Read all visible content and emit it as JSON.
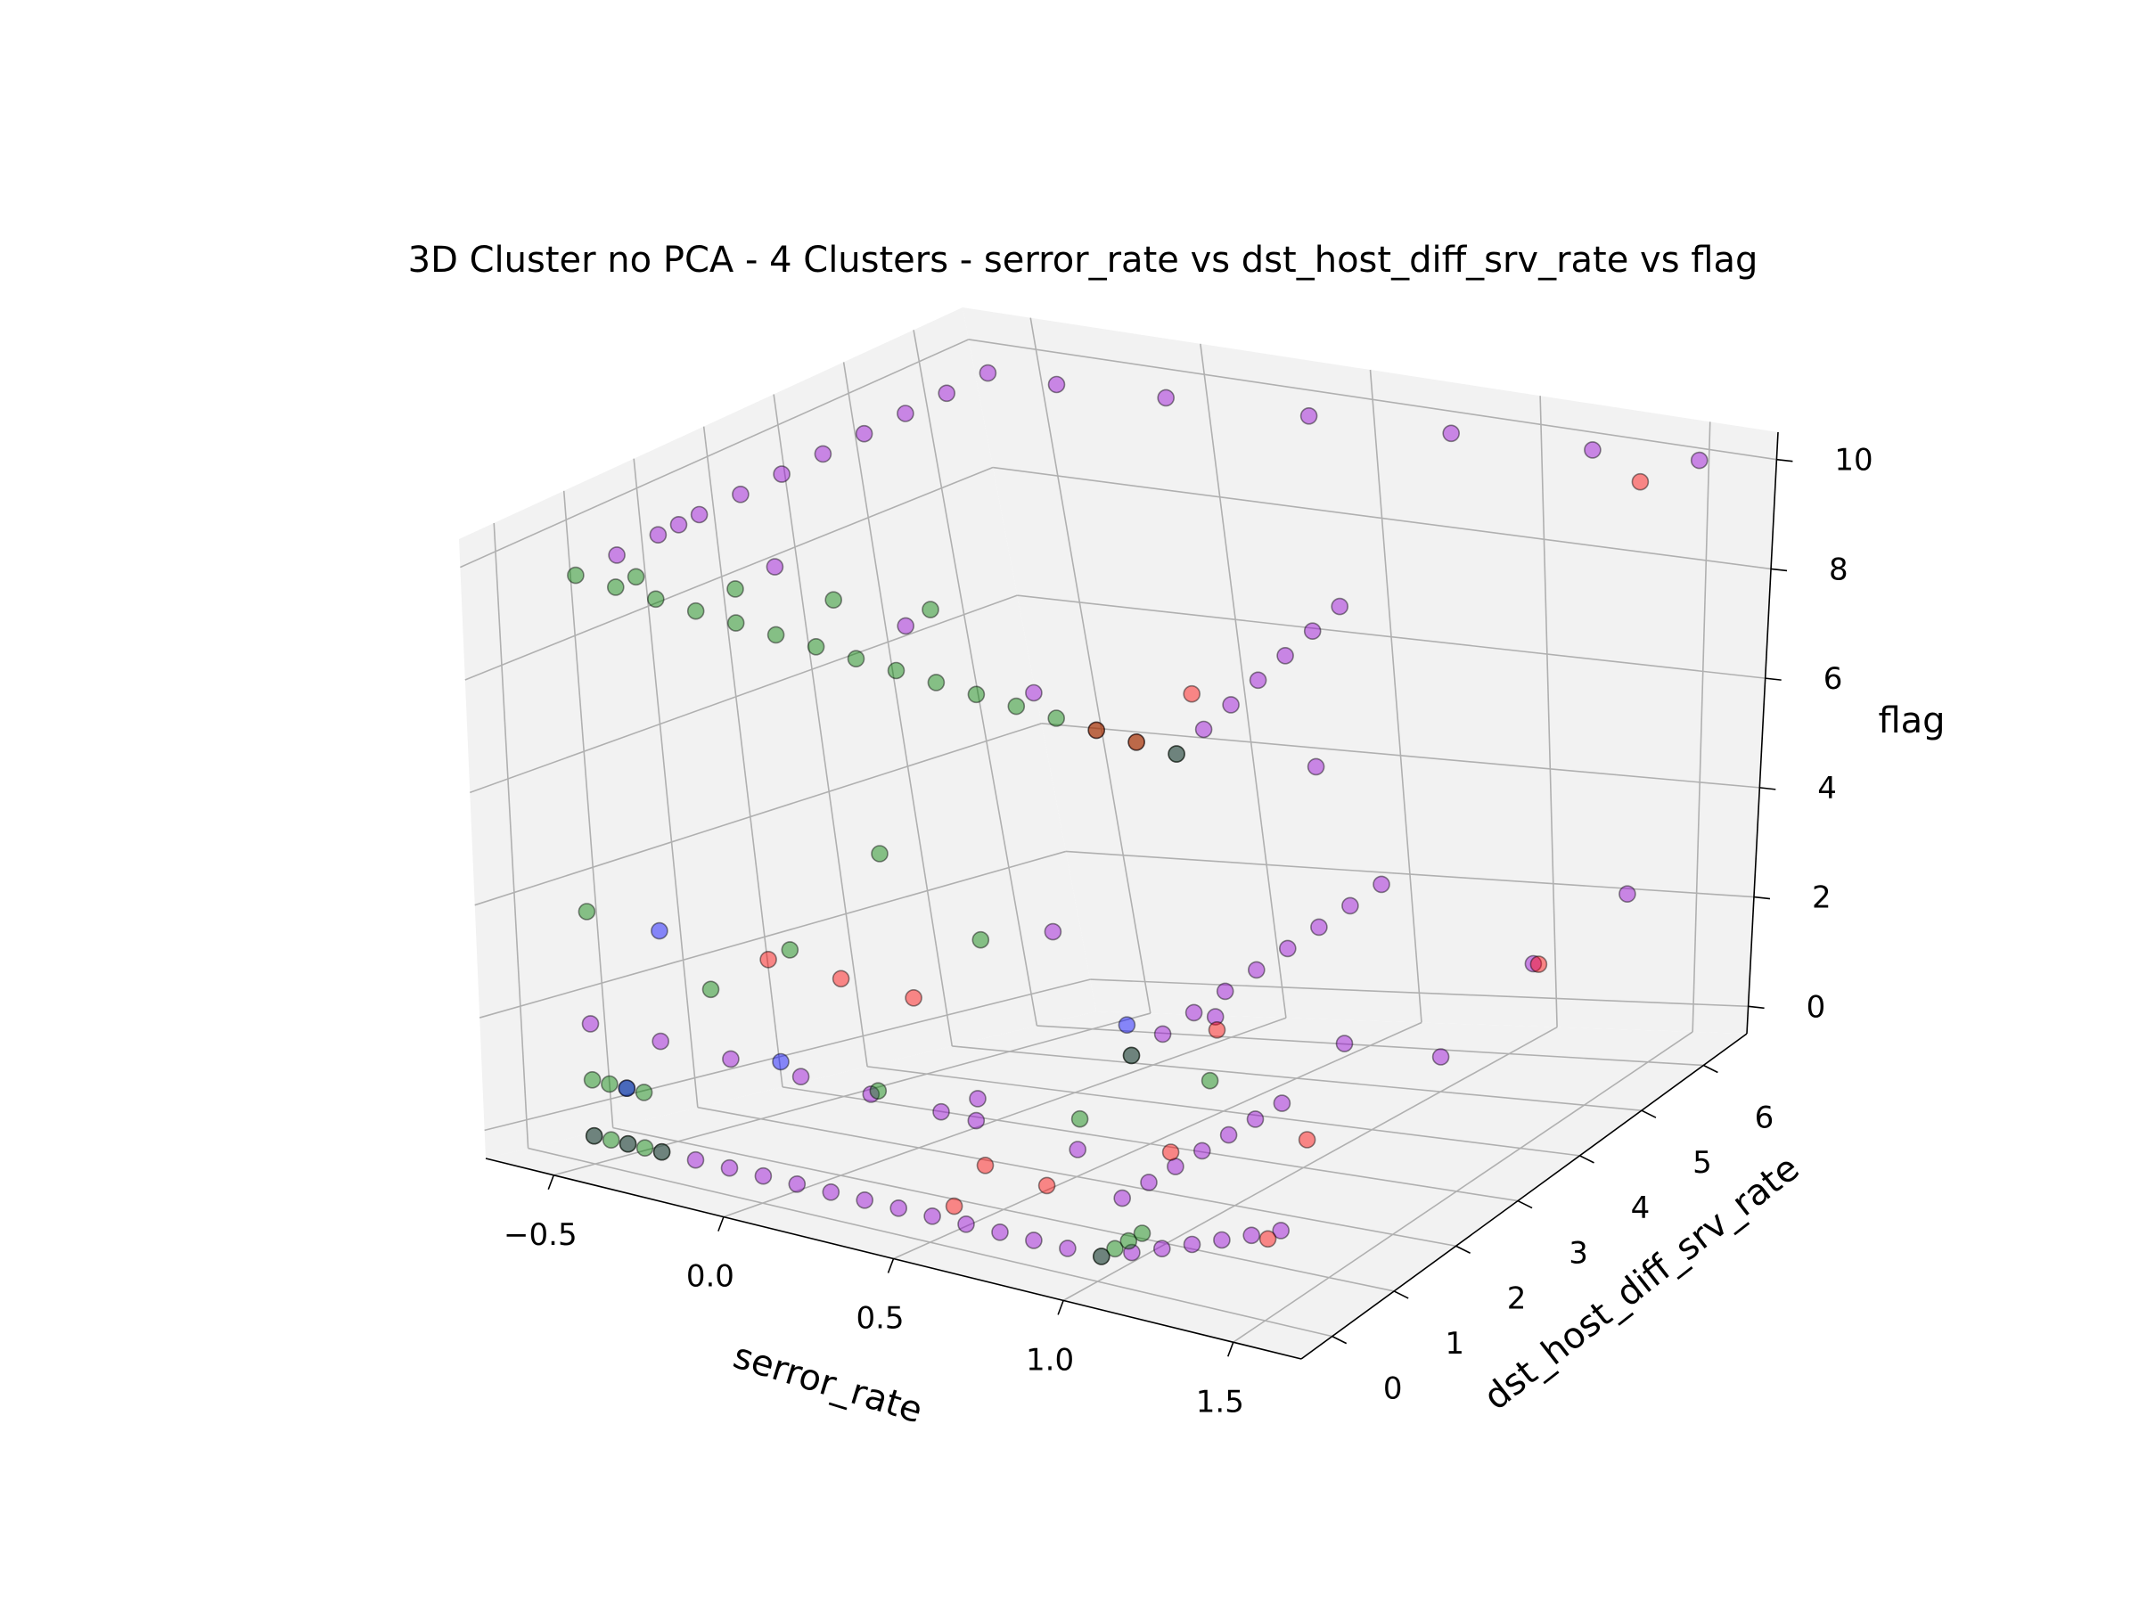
{
  "colors": {
    "pane": "#f2f2f2",
    "grid": "#b0b0b0",
    "clusters": [
      "#9400d3",
      "#008000",
      "#ff0000",
      "#0000ff"
    ]
  },
  "chart_data": {
    "type": "scatter",
    "projection": "3d",
    "title": "3D Cluster no PCA - 4 Clusters - serror_rate vs dst_host_diff_srv_rate vs flag",
    "xlabel": "serror_rate",
    "ylabel": "dst_host_diff_srv_rate",
    "zlabel": "flag",
    "xlim": [
      -0.7,
      1.7
    ],
    "ylim": [
      -0.5,
      6.7
    ],
    "zlim": [
      -0.5,
      10.5
    ],
    "xticks": [
      "−0.5",
      "0.0",
      "0.5",
      "1.0",
      "1.5"
    ],
    "xtick_values": [
      -0.5,
      0,
      0.5,
      1.0,
      1.5
    ],
    "yticks": [
      "0",
      "1",
      "2",
      "3",
      "4",
      "5",
      "6"
    ],
    "ytick_values": [
      0,
      1,
      2,
      3,
      4,
      5,
      6
    ],
    "zticks": [
      "0",
      "2",
      "4",
      "6",
      "8",
      "10"
    ],
    "ztick_values": [
      0,
      2,
      4,
      6,
      8,
      10
    ],
    "grid": true,
    "series": [
      {
        "color": "#9400d3",
        "values_note": "",
        "points": [
          [
            -0.5,
            0,
            0
          ],
          [
            -0.4,
            0,
            0
          ],
          [
            -0.3,
            0,
            0
          ],
          [
            -0.2,
            0,
            0
          ],
          [
            -0.1,
            0,
            0
          ],
          [
            0.0,
            0,
            0
          ],
          [
            0.1,
            0,
            0
          ],
          [
            0.2,
            0,
            0
          ],
          [
            0.3,
            0,
            0
          ],
          [
            0.4,
            0,
            0
          ],
          [
            0.5,
            0,
            0
          ],
          [
            0.6,
            0,
            0
          ],
          [
            0.7,
            0,
            0
          ],
          [
            0.8,
            0,
            0
          ],
          [
            0.9,
            0,
            0
          ],
          [
            1.0,
            0,
            0
          ],
          [
            1.05,
            0.2,
            0
          ],
          [
            1.1,
            0.4,
            0
          ],
          [
            1.15,
            0.6,
            0
          ],
          [
            1.2,
            0.8,
            0
          ],
          [
            1.25,
            1.0,
            0
          ],
          [
            1.3,
            1.2,
            0
          ],
          [
            -0.5,
            0,
            2
          ],
          [
            -0.3,
            0,
            2
          ],
          [
            -0.1,
            0,
            2
          ],
          [
            0.1,
            0,
            2
          ],
          [
            0.3,
            0,
            2
          ],
          [
            0.5,
            0,
            2
          ],
          [
            0.6,
            0,
            2
          ],
          [
            1.0,
            0.2,
            1
          ],
          [
            1.0,
            0.6,
            1
          ],
          [
            1.0,
            1.0,
            1
          ],
          [
            1.0,
            1.4,
            1
          ],
          [
            1.0,
            1.8,
            1
          ],
          [
            1.0,
            2.2,
            1
          ],
          [
            1.0,
            2.6,
            1
          ],
          [
            1.0,
            0,
            4
          ],
          [
            1.0,
            0.5,
            4
          ],
          [
            1.0,
            1.0,
            4
          ],
          [
            1.0,
            1.5,
            4
          ],
          [
            1.0,
            2.0,
            4
          ],
          [
            1.0,
            2.5,
            4
          ],
          [
            1.0,
            3.0,
            4
          ],
          [
            1.0,
            3.5,
            4
          ],
          [
            1.0,
            4.0,
            4
          ],
          [
            1.0,
            0,
            10
          ],
          [
            1.0,
            0.5,
            10
          ],
          [
            1.0,
            1.0,
            10
          ],
          [
            1.0,
            1.5,
            10
          ],
          [
            1.0,
            2.0,
            10
          ],
          [
            1.0,
            2.5,
            10
          ],
          [
            1.0,
            3.0,
            10
          ],
          [
            0.6,
            0.3,
            10
          ],
          [
            0.2,
            0.8,
            10
          ],
          [
            -0.2,
            1.2,
            10
          ],
          [
            -0.5,
            1.5,
            10
          ],
          [
            -0.5,
            0.6,
            10
          ],
          [
            -0.5,
            1.2,
            10
          ],
          [
            -0.5,
            1.8,
            10
          ],
          [
            -0.5,
            2.4,
            10
          ],
          [
            -0.5,
            3.0,
            10
          ],
          [
            -0.5,
            3.6,
            10
          ],
          [
            -0.5,
            4.2,
            10
          ],
          [
            -0.5,
            4.8,
            10
          ],
          [
            -0.5,
            5.4,
            10
          ],
          [
            -0.5,
            6.0,
            10
          ],
          [
            -0.3,
            6.0,
            10
          ],
          [
            0.0,
            6.1,
            10
          ],
          [
            0.4,
            6.2,
            10
          ],
          [
            0.8,
            6.3,
            10
          ],
          [
            1.2,
            6.4,
            10
          ],
          [
            1.5,
            6.5,
            10
          ],
          [
            0.5,
            2.0,
            0
          ],
          [
            0.3,
            1.5,
            1
          ],
          [
            0.7,
            3.0,
            2
          ],
          [
            0.9,
            4.0,
            1
          ],
          [
            1.3,
            5.0,
            2
          ],
          [
            1.5,
            5.5,
            3
          ],
          [
            1.4,
            3.0,
            2
          ],
          [
            0.2,
            3.0,
            3
          ],
          [
            0.6,
            5.0,
            5
          ]
        ]
      },
      {
        "color": "#008000",
        "values_note": "",
        "points": [
          [
            -0.5,
            0,
            10
          ],
          [
            -0.4,
            0,
            10
          ],
          [
            -0.3,
            0,
            10
          ],
          [
            -0.2,
            0,
            10
          ],
          [
            -0.1,
            0,
            10
          ],
          [
            0.0,
            0,
            10
          ],
          [
            0.1,
            0,
            10
          ],
          [
            0.2,
            0,
            10
          ],
          [
            0.3,
            0,
            10
          ],
          [
            0.4,
            0,
            10
          ],
          [
            0.5,
            0,
            10
          ],
          [
            0.6,
            0,
            10
          ],
          [
            0.7,
            0,
            10
          ],
          [
            0.8,
            0,
            10
          ],
          [
            0.9,
            0,
            10
          ],
          [
            1.0,
            0,
            10
          ],
          [
            -0.5,
            0,
            1
          ],
          [
            -0.45,
            0,
            1
          ],
          [
            -0.4,
            0,
            1
          ],
          [
            -0.35,
            0,
            1
          ],
          [
            -0.5,
            0,
            0
          ],
          [
            -0.45,
            0,
            0
          ],
          [
            -0.4,
            0,
            0
          ],
          [
            -0.35,
            0,
            0
          ],
          [
            -0.3,
            0,
            0
          ],
          [
            -0.5,
            0,
            4
          ],
          [
            1.0,
            0,
            4
          ],
          [
            1.0,
            0,
            0
          ],
          [
            1.0,
            0.2,
            0
          ],
          [
            1.0,
            0.4,
            0
          ],
          [
            1.0,
            0.6,
            0
          ],
          [
            -0.4,
            0.3,
            10
          ],
          [
            -0.2,
            0.6,
            10
          ],
          [
            0.0,
            0.9,
            10
          ],
          [
            0.2,
            1.2,
            10
          ],
          [
            0.2,
            0.5,
            6
          ],
          [
            0.0,
            0.3,
            4
          ],
          [
            0.5,
            0.4,
            5
          ],
          [
            1.1,
            0.8,
            3
          ],
          [
            0.8,
            0.5,
            2
          ],
          [
            -0.2,
            0.2,
            3
          ],
          [
            0.3,
            0.1,
            2
          ]
        ]
      },
      {
        "color": "#ff0000",
        "values_note": "",
        "points": [
          [
            0.0,
            0,
            4
          ],
          [
            0.2,
            0,
            4
          ],
          [
            0.4,
            0,
            4
          ],
          [
            0.8,
            0,
            10
          ],
          [
            0.9,
            0,
            10
          ],
          [
            0.9,
            1.0,
            10
          ],
          [
            0.6,
            0.2,
            1
          ],
          [
            0.8,
            0.1,
            1
          ],
          [
            1.1,
            0.3,
            2
          ],
          [
            1.5,
            4.0,
            3
          ],
          [
            1.2,
            2.0,
            1
          ],
          [
            0.5,
            0.3,
            0
          ],
          [
            1.3,
            1.0,
            0
          ],
          [
            1.4,
            6.0,
            10
          ],
          [
            1.1,
            0.8,
            4
          ]
        ]
      },
      {
        "color": "#0000ff",
        "values_note": "",
        "points": [
          [
            -0.3,
            0,
            4
          ],
          [
            0.0,
            0.2,
            2
          ],
          [
            0.9,
            0.5,
            4
          ],
          [
            -0.4,
            0,
            1
          ]
        ]
      }
    ]
  }
}
